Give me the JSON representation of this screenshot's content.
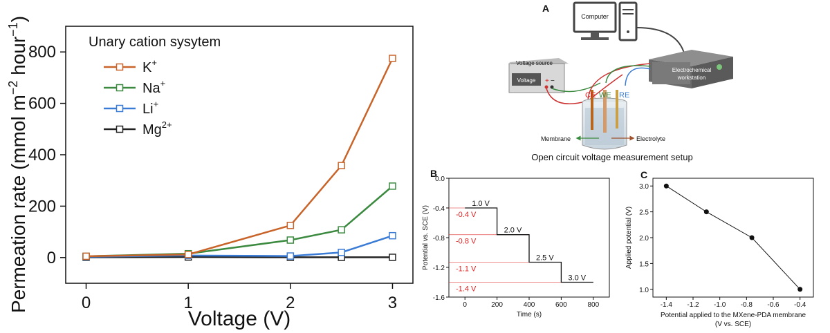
{
  "main_chart": {
    "xlabel": "Voltage (V)",
    "ylabel_prefix": "Permeation rate (mmol m",
    "ylabel_exp1": "−2",
    "ylabel_mid": " hour",
    "ylabel_exp2": "−1",
    "ylabel_suffix": ")",
    "legend_title": "Unary cation sysytem",
    "x_ticks": [
      "0",
      "1",
      "2",
      "3"
    ],
    "y_ticks": [
      "0",
      "200",
      "400",
      "600",
      "800"
    ]
  },
  "panel_a": {
    "letter": "A",
    "computer_label": "Computer",
    "voltage_source_label": "Voltage source",
    "voltage_label": "Voltage",
    "plus_label": "+",
    "minus_label": "−",
    "workstation_label_1": "Electrochemical",
    "workstation_label_2": "workstation",
    "ce_label": "CE",
    "we_label": "WE",
    "re_label": "RE",
    "membrane_label": "Membrane",
    "electrolyte_label": "Electrolyte",
    "caption": "Open circuit voltage measurement setup"
  },
  "panel_b": {
    "letter": "B",
    "xlabel": "Time (s)",
    "ylabel": "Potential vs. SCE (V)",
    "x_ticks": [
      "0",
      "200",
      "400",
      "600",
      "800"
    ],
    "y_ticks": [
      "0.0",
      "-0.4",
      "-0.8",
      "-1.2",
      "-1.6"
    ],
    "step_labels": [
      "1.0 V",
      "2.0 V",
      "2.5 V",
      "3.0 V"
    ],
    "level_labels": [
      "-0.4 V",
      "-0.8 V",
      "-1.1 V",
      "-1.4 V"
    ]
  },
  "panel_c": {
    "letter": "C",
    "ylabel": "Applied potential (V)",
    "xlabel_line1": "Potential applied to the MXene-PDA membrane",
    "xlabel_line2": "(V vs. SCE)",
    "x_ticks": [
      "-1.4",
      "-1.2",
      "-1.0",
      "-0.8",
      "-0.6",
      "-0.4"
    ],
    "y_ticks": [
      "1.0",
      "1.5",
      "2.0",
      "2.5",
      "3.0"
    ]
  },
  "colors": {
    "K": "#c8642a",
    "Na": "#3b8a40",
    "Li": "#3a7bd5",
    "Mg": "#222222",
    "red_annot": "#dd2222"
  },
  "chart_data": [
    {
      "type": "line",
      "title": "",
      "xlabel": "Voltage (V)",
      "ylabel": "Permeation rate (mmol m−2 hour−1)",
      "xlim": [
        -0.2,
        3.2
      ],
      "ylim": [
        -100,
        900
      ],
      "legend_placement": "top-left",
      "legend_title": "Unary cation sysytem",
      "series": [
        {
          "name": "K+",
          "sym": "K",
          "sup": "+",
          "x": [
            0,
            1,
            2,
            2.5,
            3
          ],
          "y": [
            5,
            12,
            125,
            358,
            775
          ]
        },
        {
          "name": "Na+",
          "sym": "Na",
          "sup": "+",
          "x": [
            0,
            1,
            2,
            2.5,
            3
          ],
          "y": [
            5,
            15,
            68,
            108,
            278
          ]
        },
        {
          "name": "Li+",
          "sym": "Li",
          "sup": "+",
          "x": [
            0,
            1,
            2,
            2.5,
            3
          ],
          "y": [
            3,
            8,
            6,
            20,
            85
          ]
        },
        {
          "name": "Mg2+",
          "sym": "Mg",
          "sup": "2+",
          "x": [
            0,
            1,
            2,
            2.5,
            3
          ],
          "y": [
            1,
            2,
            1,
            1,
            1
          ]
        }
      ]
    },
    {
      "type": "line",
      "title": "",
      "xlabel": "Time (s)",
      "ylabel": "Potential vs. SCE (V)",
      "xlim": [
        -100,
        900
      ],
      "ylim": [
        -1.6,
        0.0
      ],
      "series": [
        {
          "x": [
            0,
            200,
            200,
            400,
            400,
            600,
            600,
            800
          ],
          "y": [
            -0.4,
            -0.4,
            -0.76,
            -0.76,
            -1.13,
            -1.13,
            -1.4,
            -1.4
          ]
        }
      ]
    },
    {
      "type": "scatter",
      "title": "",
      "xlabel": "Potential applied to the MXene-PDA membrane (V vs. SCE)",
      "ylabel": "Applied potential (V)",
      "xlim": [
        -1.5,
        -0.3
      ],
      "ylim": [
        0.85,
        3.15
      ],
      "series": [
        {
          "x": [
            -1.4,
            -1.1,
            -0.76,
            -0.4
          ],
          "y": [
            3.0,
            2.5,
            2.0,
            1.0
          ]
        }
      ]
    }
  ]
}
